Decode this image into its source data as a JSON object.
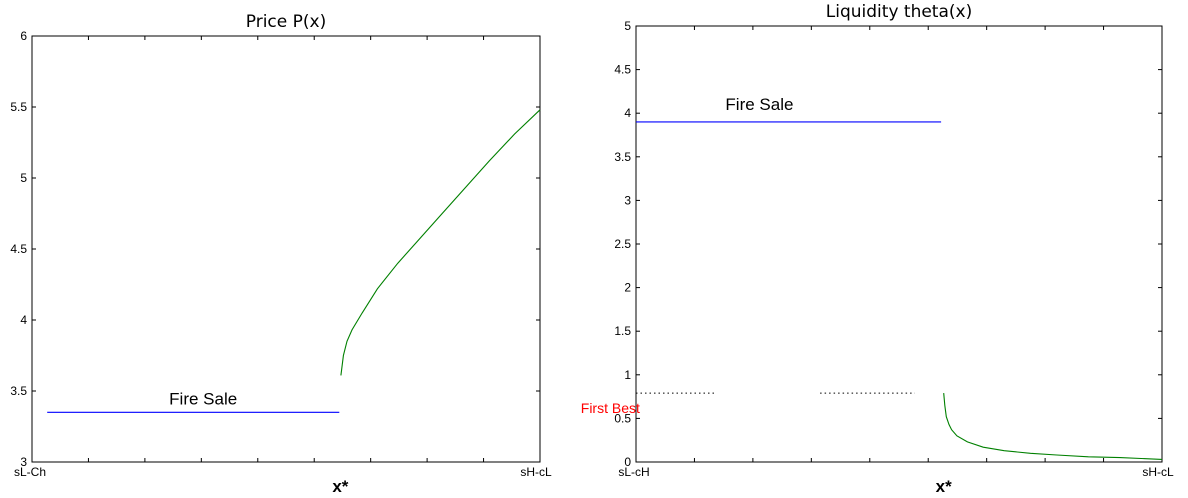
{
  "chart_data": [
    {
      "type": "line",
      "title": "Price P(x)",
      "ylim": [
        3,
        6
      ],
      "yticks": [
        "3",
        "3.5",
        "4",
        "4.5",
        "5",
        "5.5",
        "6"
      ],
      "x_tick_labels": {
        "left": "sL-Ch",
        "right": "sH-cL"
      },
      "x_marker": "x*",
      "annotations": [
        "Fire Sale"
      ],
      "grid": false,
      "series": [
        {
          "color": "#0000ff",
          "x": [
            0.03,
            0.605
          ],
          "y": [
            3.35,
            3.35
          ]
        },
        {
          "color": "#008000",
          "x": [
            0.608,
            0.613,
            0.62,
            0.63,
            0.65,
            0.68,
            0.72,
            0.76,
            0.8,
            0.85,
            0.9,
            0.95,
            1.0
          ],
          "y": [
            3.61,
            3.75,
            3.85,
            3.93,
            4.05,
            4.22,
            4.4,
            4.56,
            4.72,
            4.92,
            5.12,
            5.31,
            5.48
          ]
        }
      ]
    },
    {
      "type": "line",
      "title": "Liquidity theta(x)",
      "ylim": [
        0,
        5
      ],
      "yticks": [
        "0",
        "0.5",
        "1",
        "1.5",
        "2",
        "2.5",
        "3",
        "3.5",
        "4",
        "4.5",
        "5"
      ],
      "x_tick_labels": {
        "left": "sL-cH",
        "right": "sH-cL"
      },
      "x_marker": "x*",
      "annotations": [
        "Fire Sale",
        "First Best"
      ],
      "grid": false,
      "series": [
        {
          "color": "#0000ff",
          "x": [
            0.0,
            0.58
          ],
          "y": [
            3.9,
            3.9
          ]
        },
        {
          "color": "#000000",
          "style": "dotted",
          "x": [
            0.0,
            0.15
          ],
          "y": [
            0.79,
            0.79
          ]
        },
        {
          "color": "#000000",
          "style": "dotted",
          "x": [
            0.35,
            0.53
          ],
          "y": [
            0.79,
            0.79
          ]
        },
        {
          "color": "#008000",
          "x": [
            0.585,
            0.587,
            0.59,
            0.595,
            0.6,
            0.61,
            0.63,
            0.66,
            0.7,
            0.75,
            0.8,
            0.86,
            0.92,
            1.0
          ],
          "y": [
            0.79,
            0.65,
            0.52,
            0.43,
            0.37,
            0.3,
            0.23,
            0.17,
            0.13,
            0.1,
            0.08,
            0.06,
            0.05,
            0.03
          ]
        }
      ]
    }
  ]
}
